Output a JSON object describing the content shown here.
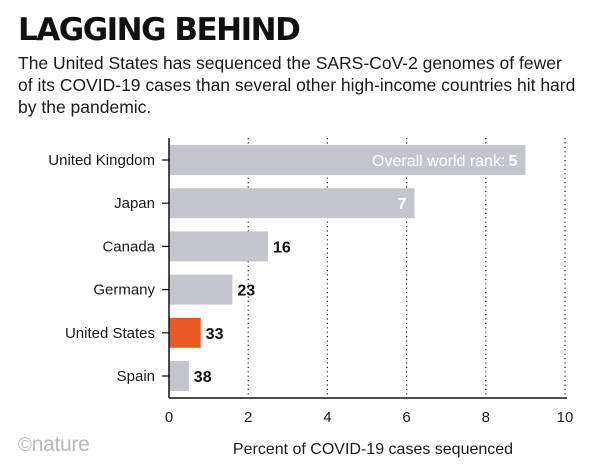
{
  "header": {
    "title": "LAGGING BEHIND",
    "subtitle": "The United States has sequenced the SARS-CoV-2 genomes of fewer of its COVID-19 cases than several other high-income countries hit hard by the pandemic."
  },
  "brand": {
    "copyright": "©",
    "name": "nature"
  },
  "colors": {
    "bar": "#c3c6cc",
    "highlight": "#e85a24",
    "grid": "#222222",
    "axis": "#111111"
  },
  "chart_data": {
    "type": "bar",
    "orientation": "horizontal",
    "title": "LAGGING BEHIND",
    "xlabel": "Percent of COVID-19 cases sequenced",
    "ylabel": "",
    "xlim": [
      0,
      10
    ],
    "xticks": [
      0,
      2,
      4,
      6,
      8,
      10
    ],
    "grid": true,
    "categories": [
      "United Kingdom",
      "Japan",
      "Canada",
      "Germany",
      "United States",
      "Spain"
    ],
    "values": [
      9.0,
      6.2,
      2.5,
      1.6,
      0.8,
      0.5
    ],
    "ranks": [
      5,
      7,
      16,
      23,
      33,
      38
    ],
    "highlight": "United States",
    "annotation": "Overall world rank: "
  }
}
